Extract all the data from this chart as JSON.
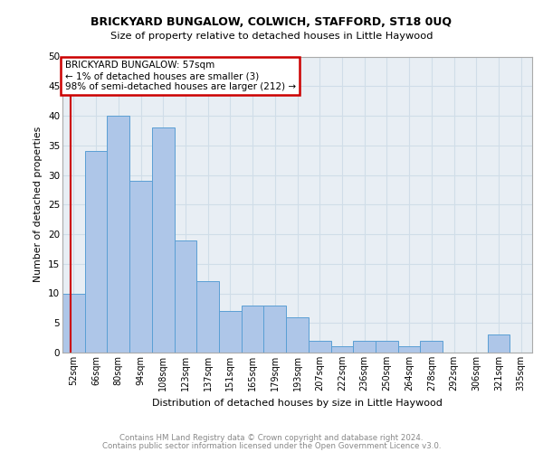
{
  "title1": "BRICKYARD BUNGALOW, COLWICH, STAFFORD, ST18 0UQ",
  "title2": "Size of property relative to detached houses in Little Haywood",
  "xlabel": "Distribution of detached houses by size in Little Haywood",
  "ylabel": "Number of detached properties",
  "categories": [
    "52sqm",
    "66sqm",
    "80sqm",
    "94sqm",
    "108sqm",
    "123sqm",
    "137sqm",
    "151sqm",
    "165sqm",
    "179sqm",
    "193sqm",
    "207sqm",
    "222sqm",
    "236sqm",
    "250sqm",
    "264sqm",
    "278sqm",
    "292sqm",
    "306sqm",
    "321sqm",
    "335sqm"
  ],
  "values": [
    10,
    34,
    40,
    29,
    38,
    19,
    12,
    7,
    8,
    8,
    6,
    2,
    1,
    2,
    2,
    1,
    2,
    0,
    0,
    3,
    0
  ],
  "bar_color": "#aec6e8",
  "bar_edge_color": "#5a9fd4",
  "annotation_box_text": "BRICKYARD BUNGALOW: 57sqm\n← 1% of detached houses are smaller (3)\n98% of semi-detached houses are larger (212) →",
  "annotation_box_color": "#ffffff",
  "annotation_box_edge_color": "#cc0000",
  "grid_color": "#d0dde8",
  "bg_color": "#e8eef4",
  "footnote1": "Contains HM Land Registry data © Crown copyright and database right 2024.",
  "footnote2": "Contains public sector information licensed under the Open Government Licence v3.0.",
  "ylim": [
    0,
    50
  ],
  "yticks": [
    0,
    5,
    10,
    15,
    20,
    25,
    30,
    35,
    40,
    45,
    50
  ]
}
